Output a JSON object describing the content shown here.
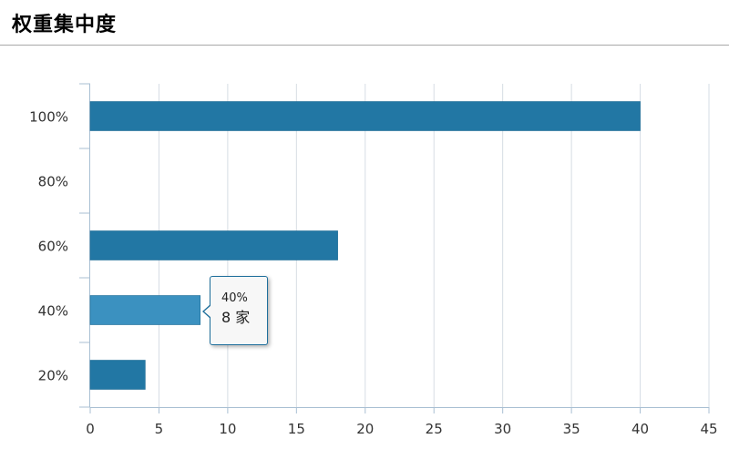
{
  "header": {
    "title": "权重集中度"
  },
  "tooltip": {
    "category": "40%",
    "value_text": "8 家"
  },
  "colors": {
    "bar": "#2277a4",
    "bar_highlight": "#3b91c0",
    "axis": "#a9bfd3",
    "grid": "#d6dde4"
  },
  "chart_data": {
    "type": "bar",
    "orientation": "horizontal",
    "title": "",
    "xlabel": "",
    "ylabel": "",
    "categories": [
      "100%",
      "80%",
      "60%",
      "40%",
      "20%"
    ],
    "values": [
      40,
      0,
      18,
      8,
      4
    ],
    "xlim": [
      0,
      45
    ],
    "xticks": [
      0,
      5,
      10,
      15,
      20,
      25,
      30,
      35,
      40,
      45
    ],
    "grid": true,
    "legend": "none",
    "highlighted_category": "40%"
  }
}
